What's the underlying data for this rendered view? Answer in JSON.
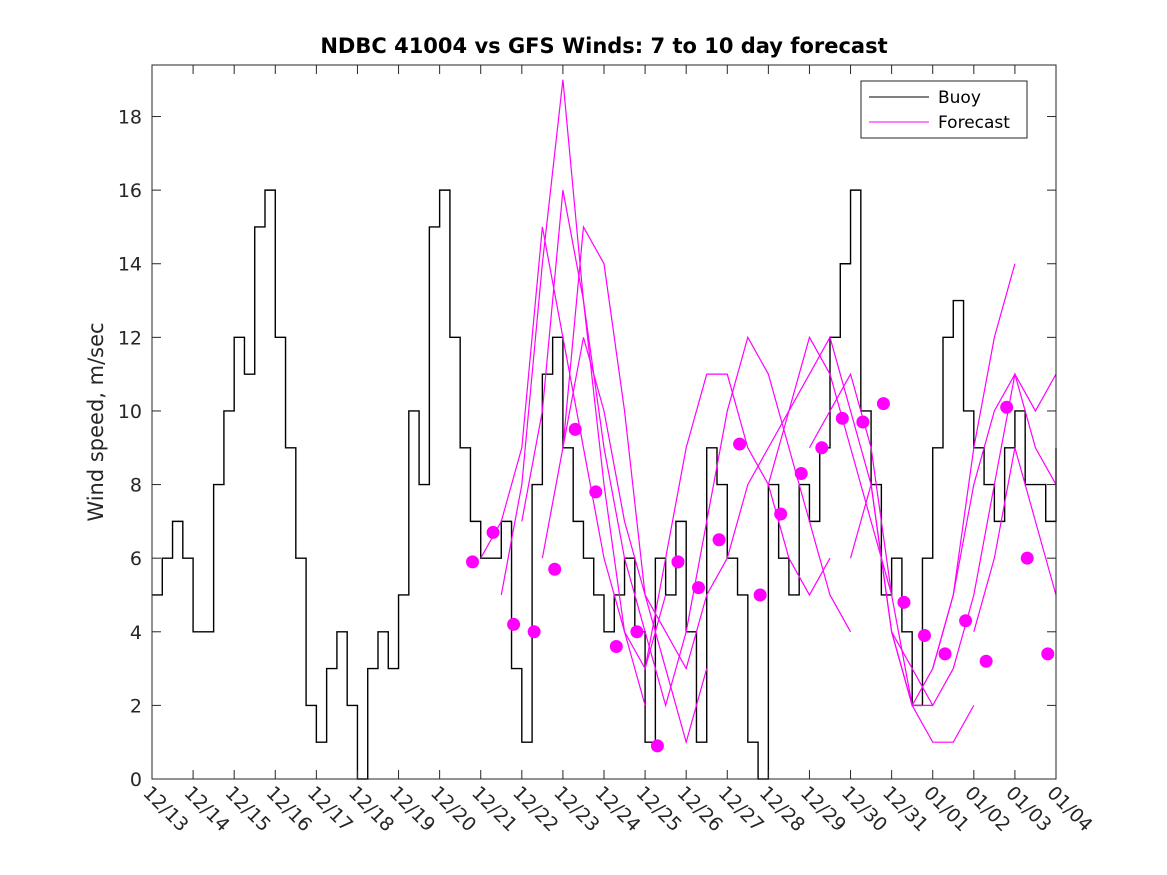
{
  "chart_data": {
    "type": "line",
    "title": "NDBC 41004 vs GFS Winds: 7 to 10 day forecast",
    "xlabel": "",
    "ylabel": "Wind speed, m/sec",
    "xlim": [
      0,
      22
    ],
    "ylim": [
      0,
      19.4
    ],
    "yticks": [
      0,
      2,
      4,
      6,
      8,
      10,
      12,
      14,
      16,
      18
    ],
    "x_tick_labels": [
      "12/13",
      "12/14",
      "12/15",
      "12/16",
      "12/17",
      "12/18",
      "12/19",
      "12/20",
      "12/21",
      "12/22",
      "12/23",
      "12/24",
      "12/25",
      "12/26",
      "12/27",
      "12/28",
      "12/29",
      "12/30",
      "12/31",
      "01/01",
      "01/02",
      "01/03",
      "01/04"
    ],
    "grid": false,
    "legend_position": "top-right",
    "legend": [
      {
        "label": "Buoy",
        "color": "#000000"
      },
      {
        "label": "Forecast",
        "color": "#ff00ff"
      }
    ],
    "series": [
      {
        "name": "Buoy",
        "color": "#000000",
        "x": [
          0.0,
          0.25,
          0.5,
          0.75,
          1.0,
          1.2,
          1.5,
          1.75,
          2.0,
          2.25,
          2.5,
          2.75,
          3.0,
          3.25,
          3.5,
          3.75,
          4.0,
          4.25,
          4.5,
          4.75,
          5.0,
          5.25,
          5.5,
          5.75,
          6.0,
          6.25,
          6.5,
          6.75,
          7.0,
          7.25,
          7.5,
          7.75,
          8.0,
          8.25,
          8.5,
          8.75,
          9.0,
          9.25,
          9.5,
          9.75,
          10.0,
          10.25,
          10.5,
          10.75,
          11.0,
          11.25,
          11.5,
          11.75,
          12.0,
          12.25,
          12.5,
          12.75,
          13.0,
          13.25,
          13.5,
          13.75,
          14.0,
          14.25,
          14.5,
          14.75,
          15.0,
          15.25,
          15.5,
          15.75,
          16.0,
          16.25,
          16.5,
          16.75,
          17.0,
          17.25,
          17.5,
          17.75,
          18.0,
          18.25,
          18.5,
          18.75,
          19.0,
          19.25,
          19.5,
          19.75,
          20.0,
          20.25,
          20.5,
          20.75,
          21.0,
          21.25,
          21.5,
          21.75,
          22.0
        ],
        "values": [
          5,
          6,
          7,
          6,
          4,
          4,
          8,
          10,
          12,
          11,
          15,
          16,
          12,
          9,
          6,
          2,
          1,
          3,
          4,
          2,
          0,
          3,
          4,
          3,
          5,
          10,
          8,
          15,
          16,
          12,
          9,
          7,
          6,
          6,
          7,
          3,
          1,
          8,
          11,
          12,
          9,
          7,
          6,
          5,
          4,
          5,
          6,
          4,
          1,
          6,
          5,
          7,
          4,
          1,
          9,
          8,
          6,
          5,
          1,
          0,
          8,
          6,
          5,
          8,
          7,
          9,
          12,
          14,
          16,
          10,
          8,
          5,
          6,
          4,
          2,
          6,
          9,
          12,
          13,
          10,
          9,
          8,
          7,
          9,
          10,
          8,
          8,
          7,
          9
        ]
      },
      {
        "name": "Forecast",
        "color": "#ff00ff",
        "runs": [
          {
            "x": [
              8.0,
              8.5,
              9.0,
              9.5,
              10.0,
              10.5,
              11.0,
              11.5,
              12.0
            ],
            "values": [
              6,
              7,
              9,
              15,
              12,
              9,
              6,
              4,
              2
            ]
          },
          {
            "x": [
              8.5,
              9.0,
              9.5,
              10.0,
              10.5,
              11.0,
              11.5,
              12.0,
              12.5
            ],
            "values": [
              5,
              8,
              14,
              19,
              13,
              8,
              4,
              3,
              5
            ]
          },
          {
            "x": [
              9.0,
              9.5,
              10.0,
              10.5,
              11.0,
              11.5,
              12.0,
              12.5,
              13.0
            ],
            "values": [
              7,
              10,
              16,
              13,
              9,
              6,
              4,
              2,
              4
            ]
          },
          {
            "x": [
              9.5,
              10.0,
              10.5,
              11.0,
              11.5,
              12.0,
              12.5,
              13.0,
              13.5
            ],
            "values": [
              6,
              9,
              15,
              14,
              10,
              5,
              3,
              1,
              3
            ]
          },
          {
            "x": [
              10.0,
              10.5,
              11.0,
              11.5,
              12.0,
              12.5,
              13.0,
              13.5,
              14.0
            ],
            "values": [
              9,
              12,
              10,
              7,
              5,
              4,
              3,
              5,
              6
            ]
          },
          {
            "x": [
              12.0,
              12.5,
              13.0,
              13.5,
              14.0,
              14.5,
              15.0,
              15.5,
              16.0,
              16.5
            ],
            "values": [
              3,
              6,
              9,
              11,
              11,
              9,
              8,
              6,
              5,
              6
            ]
          },
          {
            "x": [
              13.0,
              13.5,
              14.0,
              14.5,
              15.0,
              15.5,
              16.0,
              16.5,
              17.0
            ],
            "values": [
              4,
              7,
              10,
              12,
              11,
              9,
              7,
              5,
              4
            ]
          },
          {
            "x": [
              14.0,
              14.5,
              15.0,
              15.5,
              16.0,
              16.5,
              17.0,
              17.5,
              18.0
            ],
            "values": [
              6,
              8,
              9,
              10,
              12,
              11,
              9,
              7,
              5
            ]
          },
          {
            "x": [
              15.0,
              15.5,
              16.0,
              16.5,
              17.0,
              17.5,
              18.0,
              18.5,
              19.0
            ],
            "values": [
              8,
              10,
              11,
              12,
              10,
              8,
              4,
              2,
              2
            ]
          },
          {
            "x": [
              16.0,
              16.5,
              17.0,
              17.5,
              18.0,
              18.5,
              19.0,
              19.5,
              20.0
            ],
            "values": [
              9,
              10,
              11,
              9,
              5,
              2,
              1,
              1,
              2
            ]
          },
          {
            "x": [
              17.0,
              17.5,
              18.0,
              18.5,
              19.0,
              19.5,
              20.0,
              20.5,
              21.0
            ],
            "values": [
              6,
              8,
              4,
              2,
              3,
              5,
              9,
              12,
              14
            ]
          },
          {
            "x": [
              18.0,
              18.5,
              19.0,
              19.5,
              20.0,
              20.5,
              21.0,
              21.5,
              22.0
            ],
            "values": [
              4,
              3,
              2,
              3,
              5,
              8,
              11,
              10,
              11
            ]
          },
          {
            "x": [
              19.0,
              19.5,
              20.0,
              20.5,
              21.0,
              21.5,
              22.0
            ],
            "values": [
              3,
              5,
              8,
              10,
              11,
              9,
              8
            ]
          },
          {
            "x": [
              20.0,
              20.5,
              21.0,
              21.5,
              22.0
            ],
            "values": [
              4,
              6,
              9,
              7,
              5
            ]
          }
        ],
        "markers": {
          "x": [
            7.8,
            8.3,
            8.8,
            9.3,
            9.8,
            10.3,
            10.8,
            11.3,
            11.8,
            12.3,
            12.8,
            13.3,
            13.8,
            14.3,
            14.8,
            15.3,
            15.8,
            16.3,
            16.8,
            17.3,
            17.8,
            18.3,
            18.8,
            19.3,
            19.8,
            20.3,
            20.8,
            21.3,
            21.8
          ],
          "values": [
            5.9,
            6.7,
            4.2,
            4.0,
            5.7,
            9.5,
            7.8,
            3.6,
            4.0,
            0.9,
            5.9,
            5.2,
            6.5,
            9.1,
            5.0,
            7.2,
            8.3,
            9.0,
            9.8,
            9.7,
            10.2,
            4.8,
            3.9,
            3.4,
            4.3,
            3.2,
            10.1,
            6.0,
            3.4
          ]
        }
      }
    ]
  }
}
